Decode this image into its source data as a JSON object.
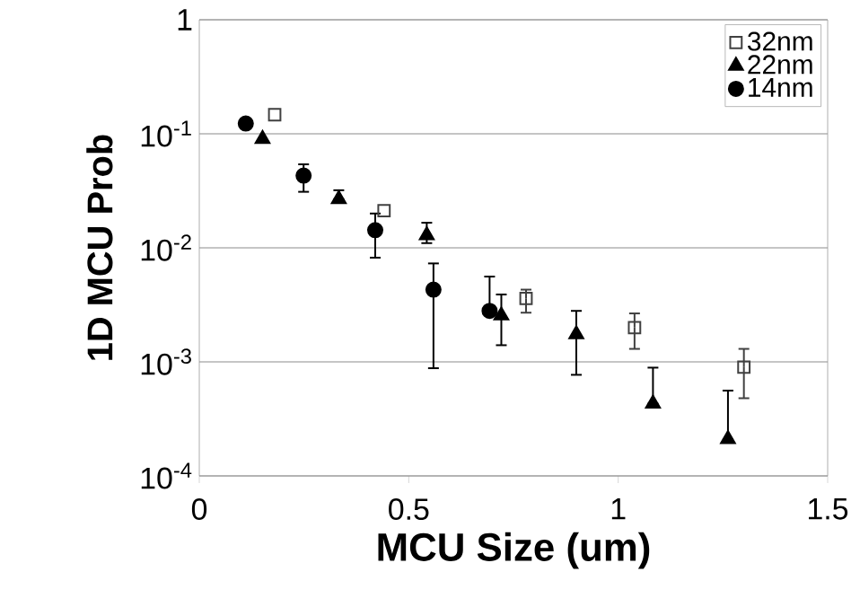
{
  "chart_data": {
    "type": "scatter",
    "xlabel": "MCU Size (um)",
    "ylabel": "1D MCU Prob",
    "xlim": [
      0,
      1.5
    ],
    "xticks": [
      0,
      0.5,
      1,
      1.5
    ],
    "ylim": [
      0.0001,
      1
    ],
    "yticks": [
      {
        "value": 0.0001,
        "label": "10$^{-4}$"
      },
      {
        "value": 0.001,
        "label": "10$^{-3}$"
      },
      {
        "value": 0.01,
        "label": "10$^{-2}$"
      },
      {
        "value": 0.1,
        "label": "10$^{-1}$"
      },
      1
    ],
    "log": "y",
    "grid": "y",
    "legend": "top right",
    "series": [
      {
        "name": "32nm",
        "color": "#404040",
        "marker": "square",
        "x": [
          0.18,
          0.441,
          0.78,
          1.039,
          1.3
        ],
        "values": [
          0.147,
          0.0212,
          0.0036,
          0.002,
          0.0009
        ],
        "errors": [
          null,
          null,
          [
            0.0027,
            0.0043
          ],
          [
            0.0013,
            0.00266
          ],
          [
            0.00048,
            0.0013
          ]
        ]
      },
      {
        "name": "22nm",
        "color": "#000000",
        "marker": "triangle",
        "x": [
          0.151,
          0.333,
          0.543,
          0.721,
          0.9,
          1.083,
          1.262
        ],
        "values": [
          0.09,
          0.0267,
          0.0129,
          0.00255,
          0.00175,
          0.00043,
          0.00021
        ],
        "errors": [
          null,
          [
            0.0267,
            0.032
          ],
          [
            0.011,
            0.0166
          ],
          [
            0.0014,
            0.0039
          ],
          [
            0.00077,
            0.0028
          ],
          [
            0.00043,
            0.00089
          ],
          [
            0.00021,
            0.00056
          ]
        ]
      },
      {
        "name": "14nm",
        "color": "#000000",
        "marker": "circle",
        "x": [
          0.111,
          0.249,
          0.42,
          0.559,
          0.693
        ],
        "values": [
          0.123,
          0.043,
          0.0143,
          0.0043,
          0.0028
        ],
        "errors": [
          null,
          [
            0.031,
            0.054
          ],
          [
            0.0082,
            0.02
          ],
          [
            0.00088,
            0.0073
          ],
          [
            0.0028,
            0.0056
          ]
        ]
      }
    ]
  }
}
